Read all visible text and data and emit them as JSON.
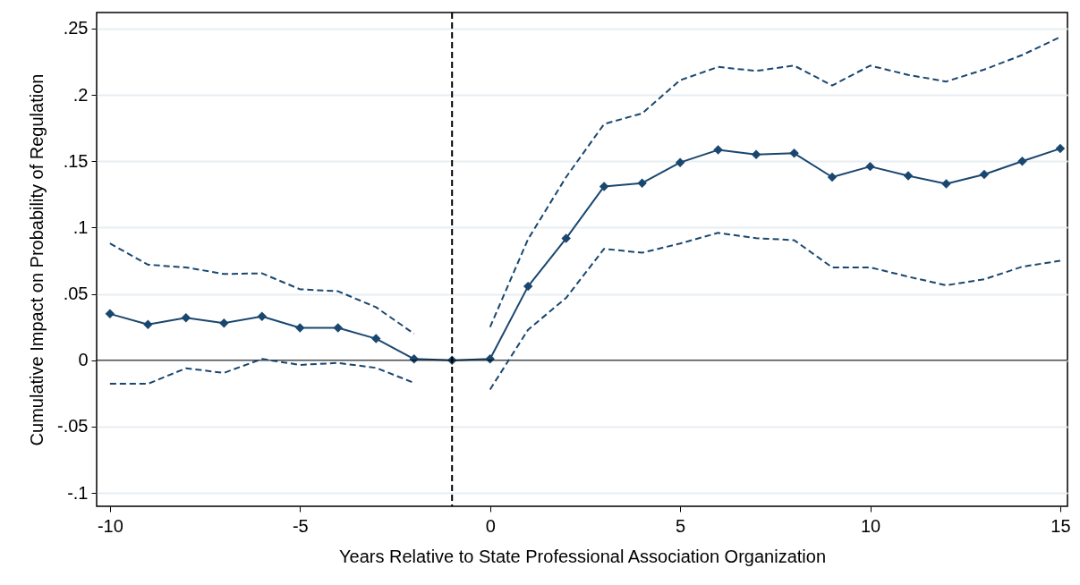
{
  "chart_data": {
    "type": "line",
    "xlabel": "Years Relative to State Professional Association Organization",
    "ylabel": "Cumulative Impact on Probability of Regulation",
    "x": [
      -10,
      -9,
      -8,
      -7,
      -6,
      -5,
      -4,
      -3,
      -2,
      -1,
      0,
      1,
      2,
      3,
      4,
      5,
      6,
      7,
      8,
      9,
      10,
      11,
      12,
      13,
      14,
      15
    ],
    "series": [
      {
        "color": "#1a476f",
        "marker": "diamond",
        "line_style": "solid",
        "values": [
          0.035,
          0.027,
          0.032,
          0.028,
          0.033,
          0.0245,
          0.0245,
          0.0163,
          0.001,
          0,
          0.001,
          0.0557,
          0.0918,
          0.131,
          0.1335,
          0.149,
          0.1585,
          0.155,
          0.156,
          0.138,
          0.146,
          0.139,
          0.133,
          0.14,
          0.15,
          0.1595
        ]
      },
      {
        "color": "#1a476f",
        "marker": "none",
        "line_style": "dashed",
        "values": [
          0.088,
          0.072,
          0.07,
          0.065,
          0.0655,
          0.0535,
          0.052,
          0.04,
          0.02,
          null,
          0.025,
          0.0913,
          0.138,
          0.178,
          0.186,
          0.211,
          0.221,
          0.218,
          0.222,
          0.207,
          0.222,
          0.215,
          0.21,
          0.219,
          0.23,
          0.2435
        ]
      },
      {
        "color": "#1a476f",
        "marker": "none",
        "line_style": "dashed",
        "values": [
          -0.0177,
          -0.0177,
          -0.006,
          -0.0095,
          0.001,
          -0.0035,
          -0.002,
          -0.0057,
          -0.017,
          null,
          -0.022,
          0.023,
          0.047,
          0.084,
          0.081,
          0.088,
          0.096,
          0.092,
          0.0905,
          0.07,
          0.07,
          0.063,
          0.0565,
          0.061,
          0.0705,
          0.075
        ]
      }
    ],
    "xlim": [
      -10.35,
      15.19
    ],
    "xticks": [
      -10,
      -5,
      0,
      5,
      10,
      15
    ],
    "ylim": [
      -0.11,
      0.262
    ],
    "yticks": [
      {
        "value": -0.1,
        "label": "-.1"
      },
      {
        "value": -0.05,
        "label": "-.05"
      },
      {
        "value": 0,
        "label": "0"
      },
      {
        "value": 0.05,
        "label": ".05"
      },
      {
        "value": 0.1,
        "label": ".1"
      },
      {
        "value": 0.15,
        "label": ".15"
      },
      {
        "value": 0.2,
        "label": ".2"
      },
      {
        "value": 0.25,
        "label": ".25"
      }
    ],
    "grid": "y",
    "ref_lines": [
      {
        "axis": "y",
        "value": 0,
        "color": "#000000",
        "line_style": "solid"
      },
      {
        "axis": "x",
        "value": -1,
        "color": "#000000",
        "line_style": "dashed"
      }
    ]
  }
}
